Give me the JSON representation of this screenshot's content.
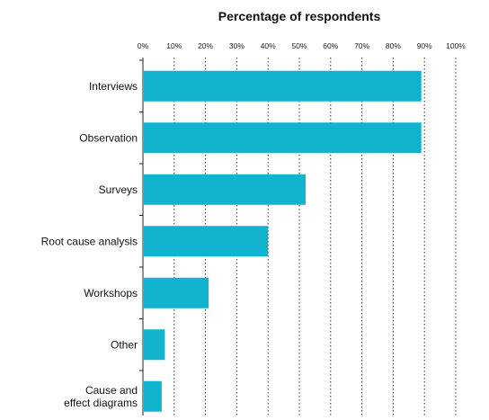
{
  "chart_data": {
    "type": "bar",
    "orientation": "horizontal",
    "title": "Percentage of respondents",
    "xlabel": "",
    "ylabel": "",
    "xlim": [
      0,
      100
    ],
    "x_ticks": [
      "0%",
      "10%",
      "20%",
      "30%",
      "40%",
      "50%",
      "60%",
      "70%",
      "80%",
      "90%",
      "100%"
    ],
    "x_tick_values": [
      0,
      10,
      20,
      30,
      40,
      50,
      60,
      70,
      80,
      90,
      100
    ],
    "axis_position": "top",
    "grid": true,
    "bar_color": "#11b3cf",
    "categories": [
      [
        "Interviews"
      ],
      [
        "Observation"
      ],
      [
        "Surveys"
      ],
      [
        "Root cause analysis"
      ],
      [
        "Workshops"
      ],
      [
        "Other"
      ],
      [
        "Cause and",
        "effect diagrams"
      ]
    ],
    "values": [
      89,
      89,
      52,
      40,
      21,
      7,
      6
    ]
  }
}
